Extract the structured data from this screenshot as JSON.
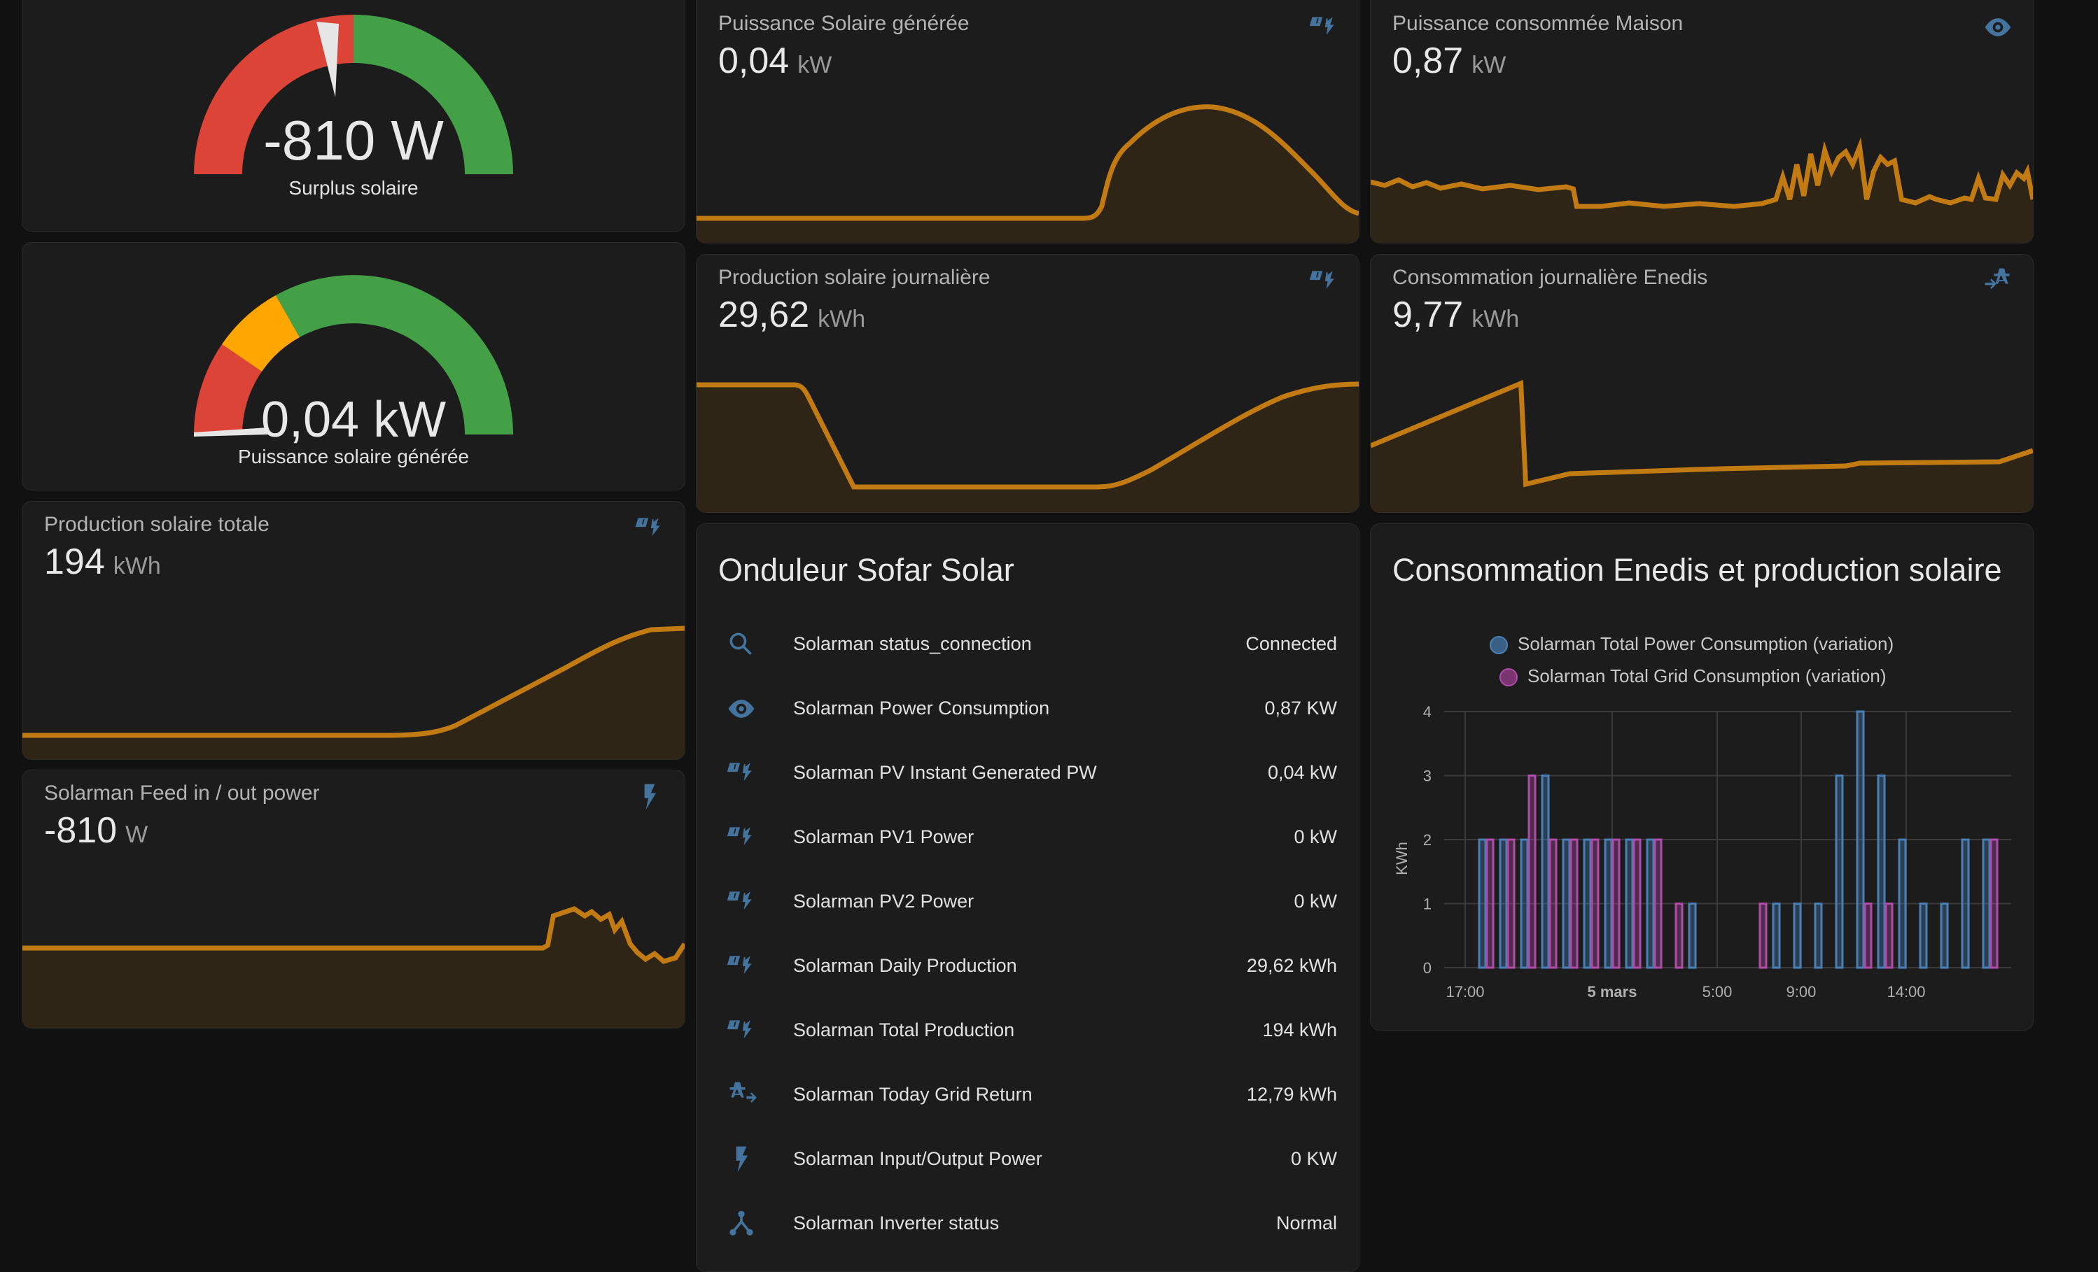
{
  "colors": {
    "background": "#111111",
    "card": "#1c1c1c",
    "accent_line": "#c27a12",
    "icon_blue": "#44739e",
    "gauge_red": "#db4437",
    "gauge_orange": "#ffa600",
    "gauge_green": "#43a047",
    "series_blue": "#4a7fb5",
    "series_purple": "#b04ba8"
  },
  "gauges": [
    {
      "value_text": "-810 W",
      "label": "Surplus solaire",
      "needle_fraction": 0.42
    },
    {
      "value_text": "0,04 kW",
      "label": "Puissance solaire générée",
      "needle_fraction": 0.0
    }
  ],
  "sensors": {
    "solar_power": {
      "title": "Puissance Solaire générée",
      "value": "0,04",
      "unit": "kW",
      "icon": "solar-power-icon"
    },
    "house_power": {
      "title": "Puissance consommée Maison",
      "value": "0,87",
      "unit": "kW",
      "icon": "eye-icon"
    },
    "daily_production": {
      "title": "Production solaire journalière",
      "value": "29,62",
      "unit": "kWh",
      "icon": "solar-power-icon"
    },
    "daily_enedis": {
      "title": "Consommation journalière Enedis",
      "value": "9,77",
      "unit": "kWh",
      "icon": "transmission-tower-import-icon"
    },
    "total_production": {
      "title": "Production solaire totale",
      "value": "194",
      "unit": "kWh",
      "icon": "solar-power-icon"
    },
    "feed_power": {
      "title": "Solarman Feed in / out power",
      "value": "-810",
      "unit": "W",
      "icon": "flash-icon"
    }
  },
  "entities_card": {
    "title": "Onduleur Sofar Solar",
    "rows": [
      {
        "icon": "magnify-icon",
        "name": "Solarman status_connection",
        "state": "Connected"
      },
      {
        "icon": "eye-icon",
        "name": "Solarman Power Consumption",
        "state": "0,87 KW"
      },
      {
        "icon": "solar-power-icon",
        "name": "Solarman PV Instant Generated PW",
        "state": "0,04 kW"
      },
      {
        "icon": "solar-power-icon",
        "name": "Solarman PV1 Power",
        "state": "0 kW"
      },
      {
        "icon": "solar-power-icon",
        "name": "Solarman PV2 Power",
        "state": "0 kW"
      },
      {
        "icon": "solar-power-icon",
        "name": "Solarman Daily Production",
        "state": "29,62 kWh"
      },
      {
        "icon": "solar-power-icon",
        "name": "Solarman Total Production",
        "state": "194 kWh"
      },
      {
        "icon": "transmission-tower-export-icon",
        "name": "Solarman Today Grid Return",
        "state": "12,79 kWh"
      },
      {
        "icon": "flash-icon",
        "name": "Solarman Input/Output Power",
        "state": "0 KW"
      },
      {
        "icon": "network-icon",
        "name": "Solarman Inverter status",
        "state": "Normal"
      }
    ]
  },
  "stats_card": {
    "title": "Consommation Enedis et production solaire"
  },
  "chart_data": {
    "type": "bar",
    "ylabel": "KWh",
    "ylim": [
      0,
      4
    ],
    "yticks": [
      "0",
      "1",
      "2",
      "3",
      "4"
    ],
    "xticks": [
      {
        "label": "17:00",
        "hour": 0
      },
      {
        "label": "5 mars",
        "hour": 7
      },
      {
        "label": "5:00",
        "hour": 12
      },
      {
        "label": "9:00",
        "hour": 16
      },
      {
        "label": "14:00",
        "hour": 21
      }
    ],
    "grid": true,
    "legend": "top",
    "series": [
      {
        "name": "Solarman Total Power Consumption (variation)",
        "color": "#4a7fb5",
        "points": [
          [
            1,
            2
          ],
          [
            2,
            2
          ],
          [
            3,
            2
          ],
          [
            4,
            3
          ],
          [
            5,
            2
          ],
          [
            6,
            2
          ],
          [
            7,
            2
          ],
          [
            8,
            2
          ],
          [
            9,
            2
          ],
          [
            11,
            1
          ],
          [
            15,
            1
          ],
          [
            16,
            1
          ],
          [
            17,
            1
          ],
          [
            18,
            3
          ],
          [
            19,
            4
          ],
          [
            20,
            3
          ],
          [
            21,
            2
          ],
          [
            22,
            1
          ],
          [
            23,
            1
          ],
          [
            24,
            2
          ],
          [
            25,
            2
          ]
        ]
      },
      {
        "name": "Solarman Total Grid Consumption (variation)",
        "color": "#b04ba8",
        "points": [
          [
            1,
            2
          ],
          [
            2,
            2
          ],
          [
            3,
            3
          ],
          [
            4,
            2
          ],
          [
            5,
            2
          ],
          [
            6,
            2
          ],
          [
            7,
            2
          ],
          [
            8,
            2
          ],
          [
            9,
            2
          ],
          [
            10,
            1
          ],
          [
            14,
            1
          ],
          [
            19,
            1
          ],
          [
            20,
            1
          ],
          [
            25,
            2
          ]
        ]
      }
    ]
  }
}
